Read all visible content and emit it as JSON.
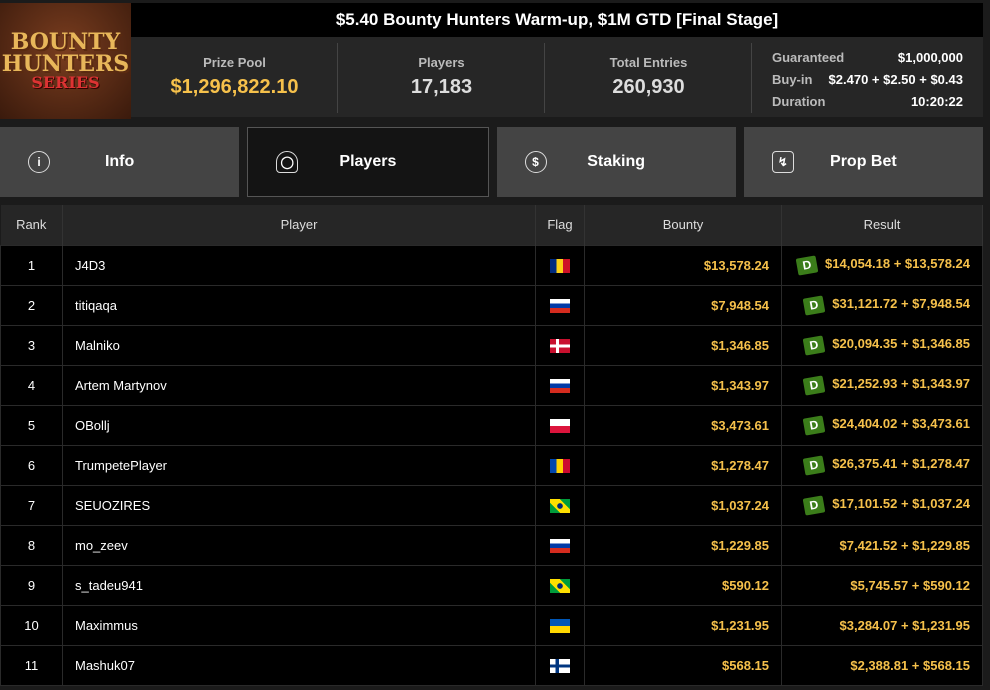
{
  "logo": {
    "line1": "BOUNTY",
    "line2": "HUNTERS",
    "line3": "SERIES"
  },
  "title": "$5.40 Bounty Hunters Warm-up, $1M GTD [Final Stage]",
  "stats": {
    "prize_pool_label": "Prize Pool",
    "prize_pool": "$1,296,822.10",
    "players_label": "Players",
    "players": "17,183",
    "entries_label": "Total Entries",
    "entries": "260,930"
  },
  "details": {
    "guaranteed_label": "Guaranteed",
    "guaranteed": "$1,000,000",
    "buyin_label": "Buy-in",
    "buyin": "$2.470 + $2.50 + $0.43",
    "duration_label": "Duration",
    "duration": "10:20:22"
  },
  "tabs": [
    {
      "label": "Info",
      "icon": "info-icon"
    },
    {
      "label": "Players",
      "icon": "user-icon"
    },
    {
      "label": "Staking",
      "icon": "dollar-icon"
    },
    {
      "label": "Prop Bet",
      "icon": "prop-bet-icon"
    }
  ],
  "columns": [
    "Rank",
    "Player",
    "Flag",
    "Bounty",
    "Result"
  ],
  "rows": [
    {
      "rank": "1",
      "player": "J4D3",
      "flag": "romania",
      "bounty": "$13,578.24",
      "result": "$14,054.18 + $13,578.24",
      "badge": "D"
    },
    {
      "rank": "2",
      "player": "titiqaqa",
      "flag": "russia",
      "bounty": "$7,948.54",
      "result": "$31,121.72 + $7,948.54",
      "badge": "D"
    },
    {
      "rank": "3",
      "player": "Malniko",
      "flag": "denmark",
      "bounty": "$1,346.85",
      "result": "$20,094.35 + $1,346.85",
      "badge": "D"
    },
    {
      "rank": "4",
      "player": "Artem Martynov",
      "flag": "russia",
      "bounty": "$1,343.97",
      "result": "$21,252.93 + $1,343.97",
      "badge": "D"
    },
    {
      "rank": "5",
      "player": "OBollj",
      "flag": "poland",
      "bounty": "$3,473.61",
      "result": "$24,404.02 + $3,473.61",
      "badge": "D"
    },
    {
      "rank": "6",
      "player": "TrumpetePlayer",
      "flag": "moldova",
      "bounty": "$1,278.47",
      "result": "$26,375.41 + $1,278.47",
      "badge": "D"
    },
    {
      "rank": "7",
      "player": "SEUOZIRES",
      "flag": "brazil",
      "bounty": "$1,037.24",
      "result": "$17,101.52 + $1,037.24",
      "badge": "D"
    },
    {
      "rank": "8",
      "player": "mo_zeev",
      "flag": "russia",
      "bounty": "$1,229.85",
      "result": "$7,421.52 + $1,229.85",
      "badge": ""
    },
    {
      "rank": "9",
      "player": "s_tadeu941",
      "flag": "brazil",
      "bounty": "$590.12",
      "result": "$5,745.57 + $590.12",
      "badge": ""
    },
    {
      "rank": "10",
      "player": "Maximmus",
      "flag": "ukraine",
      "bounty": "$1,231.95",
      "result": "$3,284.07 + $1,231.95",
      "badge": ""
    },
    {
      "rank": "11",
      "player": "Mashuk07",
      "flag": "finland",
      "bounty": "$568.15",
      "result": "$2,388.81 + $568.15",
      "badge": ""
    }
  ],
  "colors": {
    "gold": "#f6c14b",
    "badge": "#3b7d1a",
    "tab": "#444444"
  }
}
